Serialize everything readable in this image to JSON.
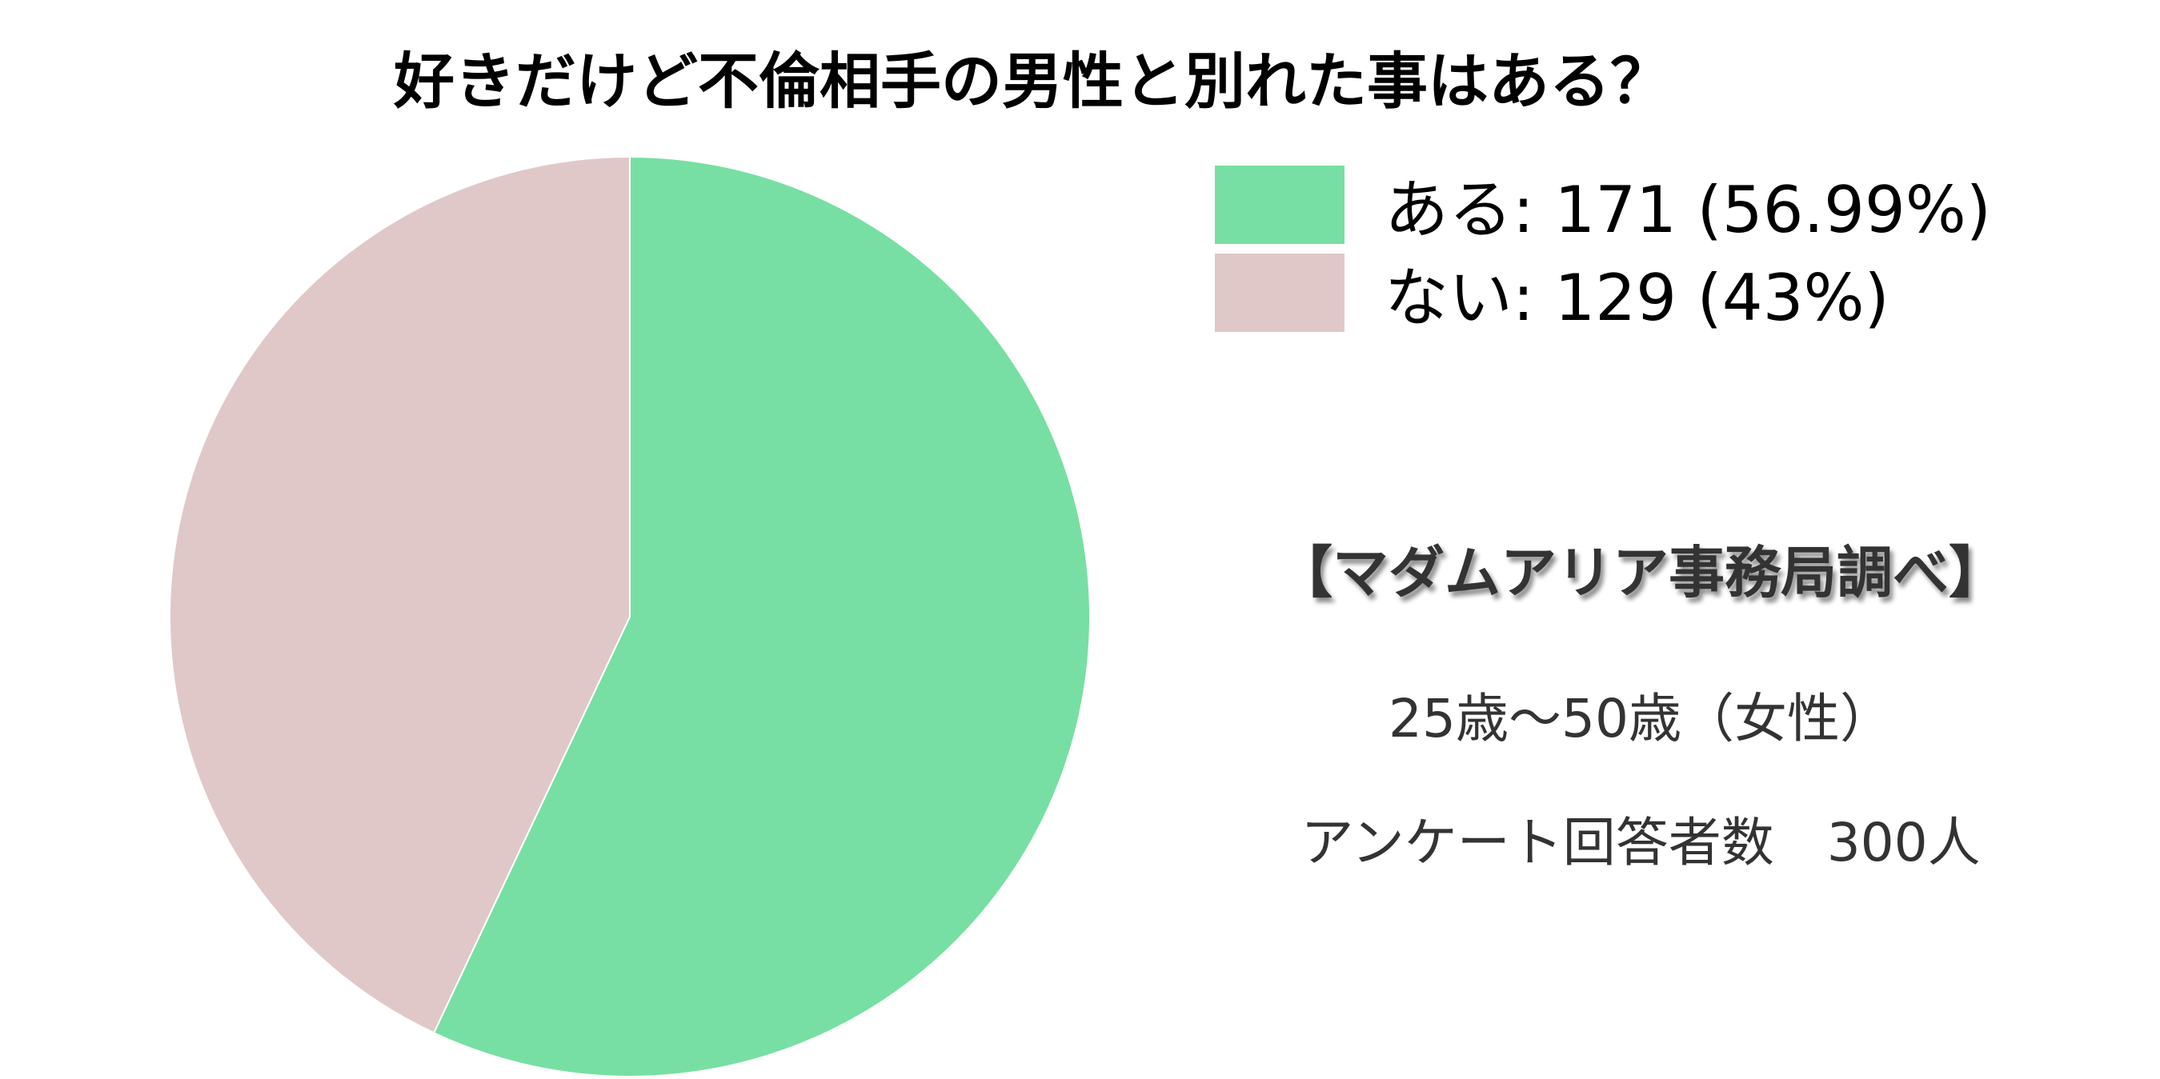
{
  "chart_data": {
    "type": "pie",
    "title": "好きだけど不倫相手の男性と別れた事はある？",
    "slices": [
      {
        "label": "ある",
        "value": 171,
        "percent": 56.99,
        "color": "#77dfa3",
        "legend_text": "ある: 171 (56.99%)"
      },
      {
        "label": "ない",
        "value": 129,
        "percent": 43,
        "color": "#e0c8c8",
        "legend_text": "ない: 129 (43%)"
      }
    ],
    "start_angle": "top",
    "direction": "clockwise",
    "legend_placement": "top-right"
  },
  "notes": {
    "source": "【マダムアリア事務局調べ】",
    "age_range": "25歳～50歳（女性）",
    "respondents": "アンケート回答者数　300人"
  }
}
